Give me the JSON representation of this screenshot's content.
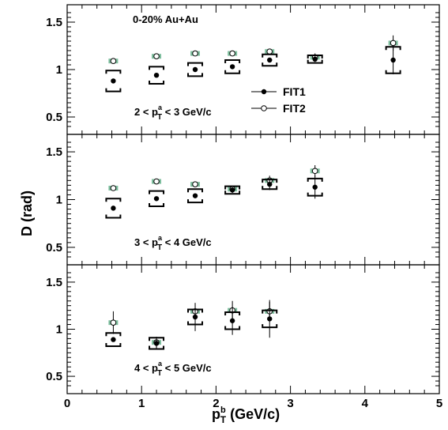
{
  "chart_data": {
    "type": "scatter",
    "xlabel": "p_T^b (GeV/c)",
    "ylabel": "D (rad)",
    "xlim": [
      0,
      5
    ],
    "ylim": [
      0.4,
      1.6
    ],
    "x_ticks": [
      "0",
      "1",
      "2",
      "3",
      "4",
      "5"
    ],
    "y_ticks": [
      "0.5",
      "1",
      "1.5"
    ],
    "header_annotation": "0-20% Au+Au",
    "legend": {
      "placement": "right-middle of top panel",
      "entries": [
        {
          "label": "FIT1",
          "marker": "filled-circle"
        },
        {
          "label": "FIT2",
          "marker": "open-circle"
        }
      ]
    },
    "panels": [
      {
        "label": "2 < p_T^a < 3 GeV/c",
        "series": [
          {
            "name": "FIT1",
            "points": [
              {
                "x": 0.62,
                "y": 0.88,
                "err": 0.0,
                "sys": 0.11
              },
              {
                "x": 1.2,
                "y": 0.94,
                "err": 0.0,
                "sys": 0.09
              },
              {
                "x": 1.72,
                "y": 1.0,
                "err": 0.0,
                "sys": 0.07
              },
              {
                "x": 2.22,
                "y": 1.03,
                "err": 0.0,
                "sys": 0.07
              },
              {
                "x": 2.72,
                "y": 1.1,
                "err": 0.0,
                "sys": 0.06
              },
              {
                "x": 3.33,
                "y": 1.11,
                "err": 0.03,
                "sys": 0.04
              },
              {
                "x": 4.38,
                "y": 1.1,
                "err": 0.15,
                "sys": 0.14
              }
            ]
          },
          {
            "name": "FIT2",
            "points": [
              {
                "x": 0.62,
                "y": 1.09,
                "err": 0.0,
                "sys": 0.025
              },
              {
                "x": 1.2,
                "y": 1.14,
                "err": 0.0,
                "sys": 0.025
              },
              {
                "x": 1.72,
                "y": 1.17,
                "err": 0.0,
                "sys": 0.025
              },
              {
                "x": 2.22,
                "y": 1.17,
                "err": 0.0,
                "sys": 0.025
              },
              {
                "x": 2.72,
                "y": 1.19,
                "err": 0.0,
                "sys": 0.025
              },
              {
                "x": 3.33,
                "y": 1.13,
                "err": 0.04,
                "sys": 0.025
              },
              {
                "x": 4.38,
                "y": 1.28,
                "err": 0.08,
                "sys": 0.025
              }
            ]
          }
        ]
      },
      {
        "label": "3 < p_T^a < 4 GeV/c",
        "series": [
          {
            "name": "FIT1",
            "points": [
              {
                "x": 0.62,
                "y": 0.91,
                "err": 0.0,
                "sys": 0.1
              },
              {
                "x": 1.2,
                "y": 1.01,
                "err": 0.0,
                "sys": 0.08
              },
              {
                "x": 1.72,
                "y": 1.04,
                "err": 0.0,
                "sys": 0.07
              },
              {
                "x": 2.22,
                "y": 1.1,
                "err": 0.03,
                "sys": 0.04
              },
              {
                "x": 2.72,
                "y": 1.16,
                "err": 0.06,
                "sys": 0.05
              },
              {
                "x": 3.33,
                "y": 1.13,
                "err": 0.12,
                "sys": 0.09
              }
            ]
          },
          {
            "name": "FIT2",
            "points": [
              {
                "x": 0.62,
                "y": 1.12,
                "err": 0.0,
                "sys": 0.025
              },
              {
                "x": 1.2,
                "y": 1.19,
                "err": 0.0,
                "sys": 0.025
              },
              {
                "x": 1.72,
                "y": 1.16,
                "err": 0.0,
                "sys": 0.025
              },
              {
                "x": 2.22,
                "y": 1.11,
                "err": 0.03,
                "sys": 0.025
              },
              {
                "x": 2.72,
                "y": 1.2,
                "err": 0.05,
                "sys": 0.025
              },
              {
                "x": 3.33,
                "y": 1.3,
                "err": 0.06,
                "sys": 0.025
              }
            ]
          }
        ]
      },
      {
        "label": "4 < p_T^a < 5 GeV/c",
        "series": [
          {
            "name": "FIT1",
            "points": [
              {
                "x": 0.62,
                "y": 0.89,
                "err": 0.0,
                "sys": 0.07
              },
              {
                "x": 1.2,
                "y": 0.85,
                "err": 0.05,
                "sys": 0.06
              },
              {
                "x": 1.72,
                "y": 1.13,
                "err": 0.15,
                "sys": 0.08
              },
              {
                "x": 2.22,
                "y": 1.09,
                "err": 0.15,
                "sys": 0.09
              },
              {
                "x": 2.72,
                "y": 1.11,
                "err": 0.2,
                "sys": 0.09
              }
            ]
          },
          {
            "name": "FIT2",
            "points": [
              {
                "x": 0.62,
                "y": 1.07,
                "err": 0.12,
                "sys": 0.025
              },
              {
                "x": 1.2,
                "y": 0.86,
                "err": 0.06,
                "sys": 0.025
              },
              {
                "x": 1.72,
                "y": 1.19,
                "err": 0.08,
                "sys": 0.025
              },
              {
                "x": 2.22,
                "y": 1.2,
                "err": 0.1,
                "sys": 0.025
              },
              {
                "x": 2.72,
                "y": 1.19,
                "err": 0.1,
                "sys": 0.025
              }
            ]
          }
        ]
      }
    ]
  },
  "colors": {
    "fit2_band": "#7fbf9f",
    "fit1_marker": "#000000",
    "fit2_marker_fill": "#ffffff",
    "axis": "#000000"
  }
}
